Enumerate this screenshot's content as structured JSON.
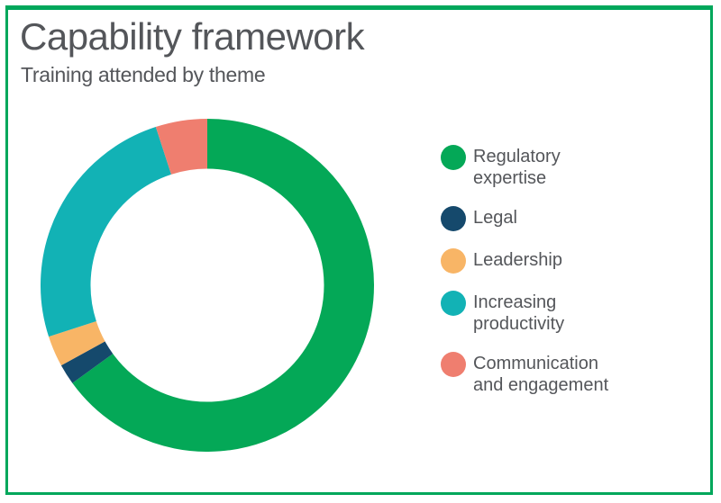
{
  "header": {
    "title": "Capability framework",
    "subtitle": "Training attended by theme"
  },
  "colors": {
    "frame_border": "#00A75B",
    "text": "#54565A",
    "background": "#FFFFFF"
  },
  "chart_data": {
    "type": "pie",
    "variant": "donut",
    "title": "Capability framework",
    "subtitle": "Training attended by theme",
    "values_unit": "percent (estimated from arc angles, no labels shown)",
    "start_angle_deg": 0,
    "direction": "clockwise",
    "inner_radius_ratio": 0.7,
    "grid": false,
    "legend_position": "right",
    "segments": [
      {
        "label": "Regulatory expertise",
        "value": 65,
        "color": "#04A857"
      },
      {
        "label": "Legal",
        "value": 2,
        "color": "#15496C"
      },
      {
        "label": "Leadership",
        "value": 3,
        "color": "#F8B566"
      },
      {
        "label": "Increasing productivity",
        "value": 25,
        "color": "#12B2B5"
      },
      {
        "label": "Communication and engagement",
        "value": 5,
        "color": "#EF7E6F"
      }
    ]
  }
}
